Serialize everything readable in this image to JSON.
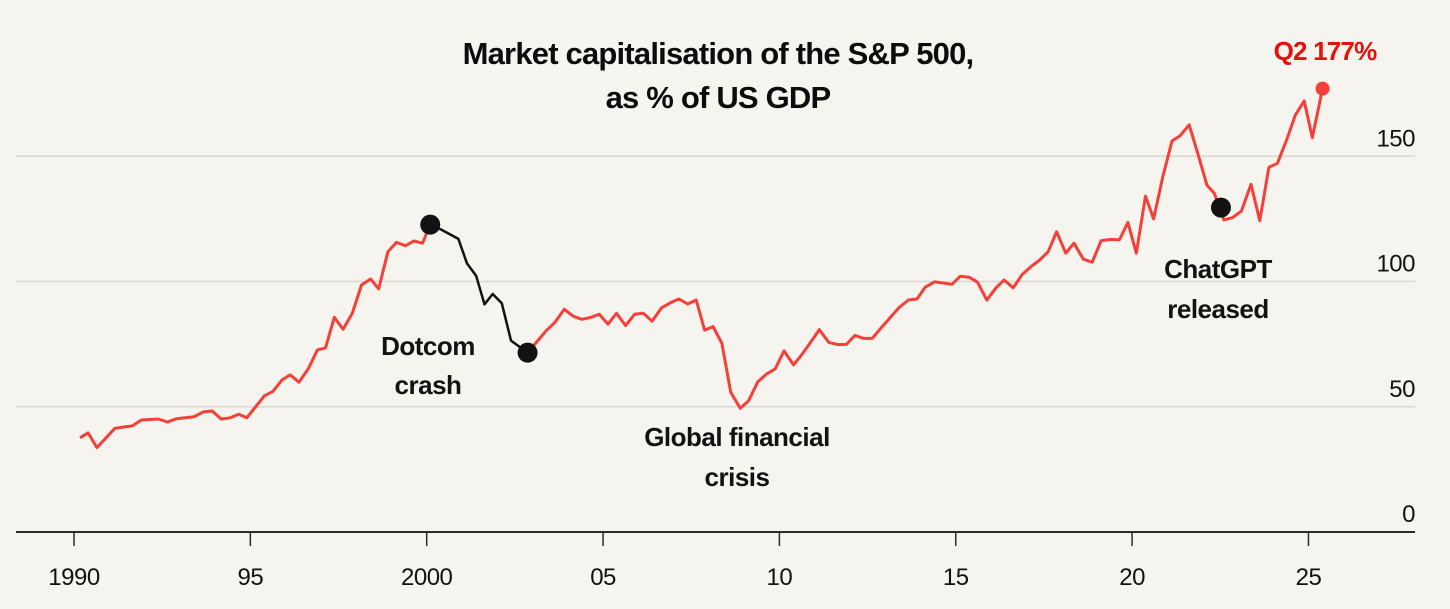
{
  "chart_data": {
    "type": "line",
    "title": [
      "Market capitalisation of the S&P 500,",
      "as % of US GDP"
    ],
    "xlabel": "",
    "ylabel": "",
    "xlim": [
      1988.3,
      2027.7
    ],
    "ylim": [
      0,
      185
    ],
    "grid": true,
    "x_ticks": [
      1990,
      1995,
      2000,
      2005,
      2010,
      2015,
      2020,
      2025
    ],
    "x_tick_labels": [
      "1990",
      "95",
      "2000",
      "05",
      "10",
      "15",
      "20",
      "25"
    ],
    "y_ticks": [
      0,
      50,
      100,
      150
    ],
    "y_tick_labels": [
      "0",
      "50",
      "100",
      "150"
    ],
    "colors": {
      "line": "#f5403a",
      "highlight_segment": "#121212",
      "latest_label": "#e3120b",
      "background": "#f5f4ef",
      "grid": "#d9d8d4",
      "axis": "#2a2a2a"
    },
    "series": [
      {
        "x": [
          1990.17,
          1990.4,
          1990.65,
          1991.16,
          1991.66,
          1991.91,
          1992.39,
          1992.65,
          1992.9,
          1993.4,
          1993.66,
          1993.92,
          1994.17,
          1994.43,
          1994.67,
          1994.9,
          1995.4,
          1995.63,
          1995.9,
          1996.13,
          1996.38,
          1996.65,
          1996.9,
          1997.13,
          1997.38,
          1997.63,
          1997.89,
          1998.15,
          1998.41,
          1998.64,
          1998.9,
          1999.14,
          1999.4,
          1999.64,
          1999.88,
          2000.1,
          2000.4,
          2000.9,
          2001.14,
          2001.4,
          2001.64,
          2001.87,
          2002.13,
          2002.39,
          2002.86,
          2003.38,
          2003.63,
          2003.9,
          2004.15,
          2004.4,
          2004.63,
          2004.89,
          2005.14,
          2005.38,
          2005.64,
          2005.9,
          2006.14,
          2006.39,
          2006.66,
          2006.91,
          2007.15,
          2007.4,
          2007.64,
          2007.88,
          2008.12,
          2008.37,
          2008.62,
          2008.89,
          2009.12,
          2009.39,
          2009.64,
          2009.88,
          2010.13,
          2010.4,
          2010.65,
          2010.88,
          2011.13,
          2011.4,
          2011.65,
          2011.9,
          2012.14,
          2012.39,
          2012.63,
          2012.89,
          2013.14,
          2013.4,
          2013.66,
          2013.9,
          2014.13,
          2014.4,
          2014.89,
          2015.13,
          2015.38,
          2015.62,
          2015.88,
          2016.14,
          2016.37,
          2016.63,
          2016.89,
          2017.13,
          2017.38,
          2017.62,
          2017.86,
          2018.12,
          2018.35,
          2018.62,
          2018.87,
          2019.12,
          2019.39,
          2019.64,
          2019.88,
          2020.12,
          2020.38,
          2020.61,
          2020.87,
          2021.13,
          2021.36,
          2021.62,
          2021.86,
          2022.12,
          2022.33,
          2022.6,
          2022.85,
          2023.1,
          2023.37,
          2023.62,
          2023.88,
          2024.12,
          2024.38,
          2024.63,
          2024.88,
          2025.11,
          2025.4
        ],
        "y": [
          37.6,
          39.6,
          33.7,
          41.4,
          42.4,
          44.7,
          45.1,
          43.9,
          45.2,
          46.0,
          47.9,
          48.3,
          45.1,
          45.6,
          47.0,
          45.6,
          54.4,
          56.0,
          60.7,
          62.7,
          59.8,
          65.3,
          72.7,
          73.5,
          85.7,
          80.9,
          87.3,
          98.6,
          101.0,
          97.1,
          111.9,
          115.6,
          114.3,
          116.2,
          115.3,
          122.7,
          120.8,
          117.0,
          107.3,
          102.3,
          90.9,
          95.0,
          91.3,
          76.4,
          71.6,
          80.2,
          83.6,
          88.9,
          86.2,
          84.9,
          85.6,
          86.9,
          83.0,
          87.3,
          82.4,
          87.0,
          87.3,
          84.2,
          89.5,
          91.5,
          93.0,
          91.0,
          92.6,
          80.6,
          82.0,
          75.3,
          55.8,
          49.4,
          52.3,
          60.0,
          63.1,
          65.1,
          72.3,
          66.7,
          71.1,
          75.6,
          80.8,
          75.7,
          74.8,
          74.9,
          78.5,
          77.3,
          77.3,
          81.6,
          85.5,
          89.7,
          92.6,
          93.0,
          97.7,
          99.9,
          98.9,
          102.1,
          101.7,
          99.7,
          92.6,
          97.5,
          100.6,
          97.5,
          102.9,
          105.9,
          108.6,
          111.9,
          119.9,
          111.3,
          115.3,
          108.9,
          107.7,
          116.3,
          116.8,
          116.6,
          123.6,
          111.3,
          134.1,
          125.0,
          141.8,
          156.1,
          158.2,
          162.5,
          151.2,
          138.5,
          135.2,
          124.6,
          125.5,
          128.1,
          138.8,
          124.3,
          145.6,
          147.2,
          156.5,
          166.5,
          172.1,
          157.4,
          177.0
        ]
      }
    ],
    "highlight_segment": {
      "x_start": 2000.1,
      "x_end": 2002.86
    },
    "markers": [
      {
        "x": 2000.1,
        "y": 122.7
      },
      {
        "x": 2002.86,
        "y": 71.6
      },
      {
        "x": 2022.52,
        "y": 129.5
      },
      {
        "x": 2025.4,
        "y": 177.0
      }
    ],
    "annotations": [
      {
        "lines": [
          "Dotcom",
          "crash"
        ]
      },
      {
        "lines": [
          "Global financial",
          "crisis"
        ]
      },
      {
        "lines": [
          "ChatGPT",
          "released"
        ]
      }
    ],
    "latest_label": "Q2 177%"
  }
}
